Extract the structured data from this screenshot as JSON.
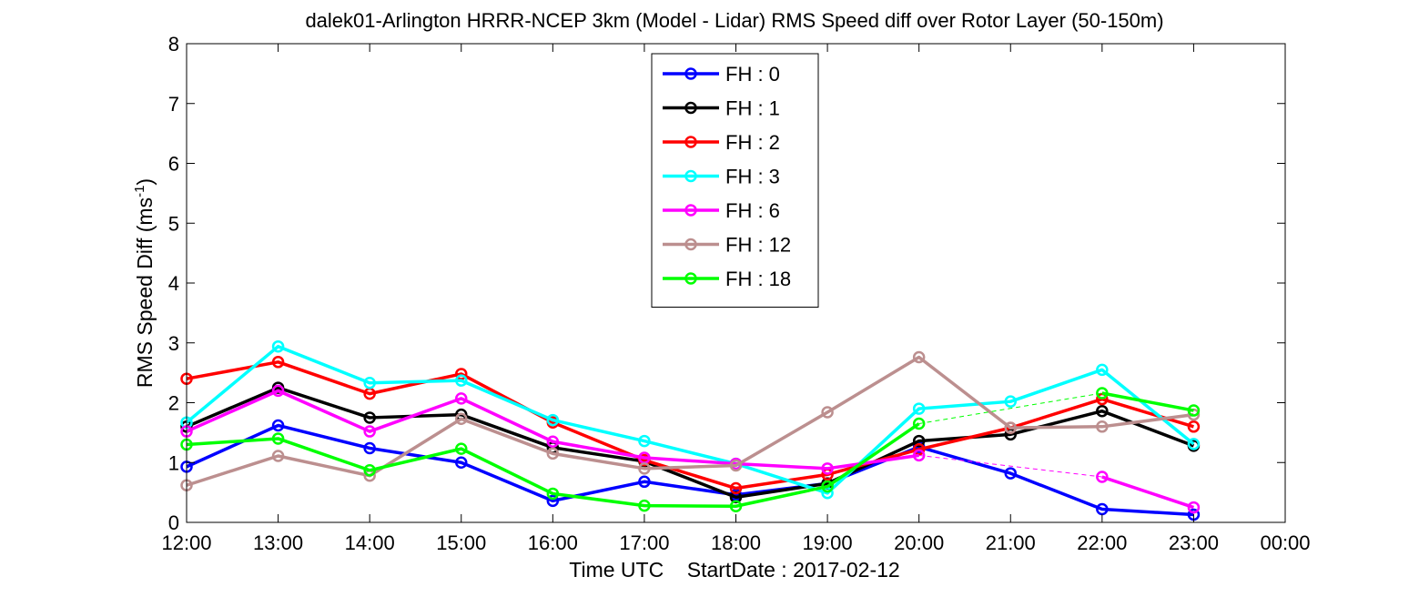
{
  "chart_data": {
    "type": "line",
    "title": "dalek01-Arlington HRRR-NCEP 3km (Model - Lidar) RMS Speed diff over Rotor Layer (50-150m)",
    "xlabel": "Time UTC    StartDate : 2017-02-12",
    "ylabel": {
      "main": "RMS Speed Diff (ms",
      "superscript": "-1",
      "close": ")"
    },
    "x_ticks": [
      "12:00",
      "13:00",
      "14:00",
      "15:00",
      "16:00",
      "17:00",
      "18:00",
      "19:00",
      "20:00",
      "21:00",
      "22:00",
      "23:00",
      "00:00"
    ],
    "ylim": [
      0,
      8
    ],
    "y_ticks": [
      "0",
      "1",
      "2",
      "3",
      "4",
      "5",
      "6",
      "7",
      "8"
    ],
    "grid": false,
    "legend_position": "top-center",
    "series": [
      {
        "name": "FH : 0",
        "color": "#0000ff",
        "values": [
          0.93,
          1.62,
          1.24,
          1.0,
          0.36,
          0.68,
          0.46,
          0.65,
          1.26,
          0.82,
          0.22,
          0.13
        ]
      },
      {
        "name": "FH : 1",
        "color": "#000000",
        "values": [
          1.6,
          2.25,
          1.75,
          1.8,
          1.25,
          1.02,
          0.42,
          0.65,
          1.36,
          1.47,
          1.86,
          1.28
        ]
      },
      {
        "name": "FH : 2",
        "color": "#ff0000",
        "values": [
          2.4,
          2.68,
          2.15,
          2.48,
          1.67,
          1.04,
          0.57,
          0.8,
          1.22,
          1.58,
          2.06,
          1.6
        ]
      },
      {
        "name": "FH : 3",
        "color": "#00ffff",
        "values": [
          1.67,
          2.94,
          2.33,
          2.37,
          1.71,
          1.36,
          0.98,
          0.49,
          1.9,
          2.02,
          2.55,
          1.31
        ]
      },
      {
        "name": "FH : 6",
        "color": "#ff00ff",
        "values": [
          1.52,
          2.2,
          1.52,
          2.07,
          1.35,
          1.08,
          0.98,
          0.9,
          1.12,
          null,
          0.76,
          0.25
        ]
      },
      {
        "name": "FH : 12",
        "color": "#bc8f8f",
        "values": [
          0.62,
          1.11,
          0.78,
          1.73,
          1.15,
          0.9,
          0.95,
          1.84,
          2.76,
          1.58,
          1.6,
          1.8
        ]
      },
      {
        "name": "FH : 18",
        "color": "#00ff00",
        "values": [
          1.3,
          1.4,
          0.87,
          1.23,
          0.48,
          0.28,
          0.27,
          0.6,
          1.65,
          null,
          2.16,
          1.87
        ]
      }
    ]
  }
}
